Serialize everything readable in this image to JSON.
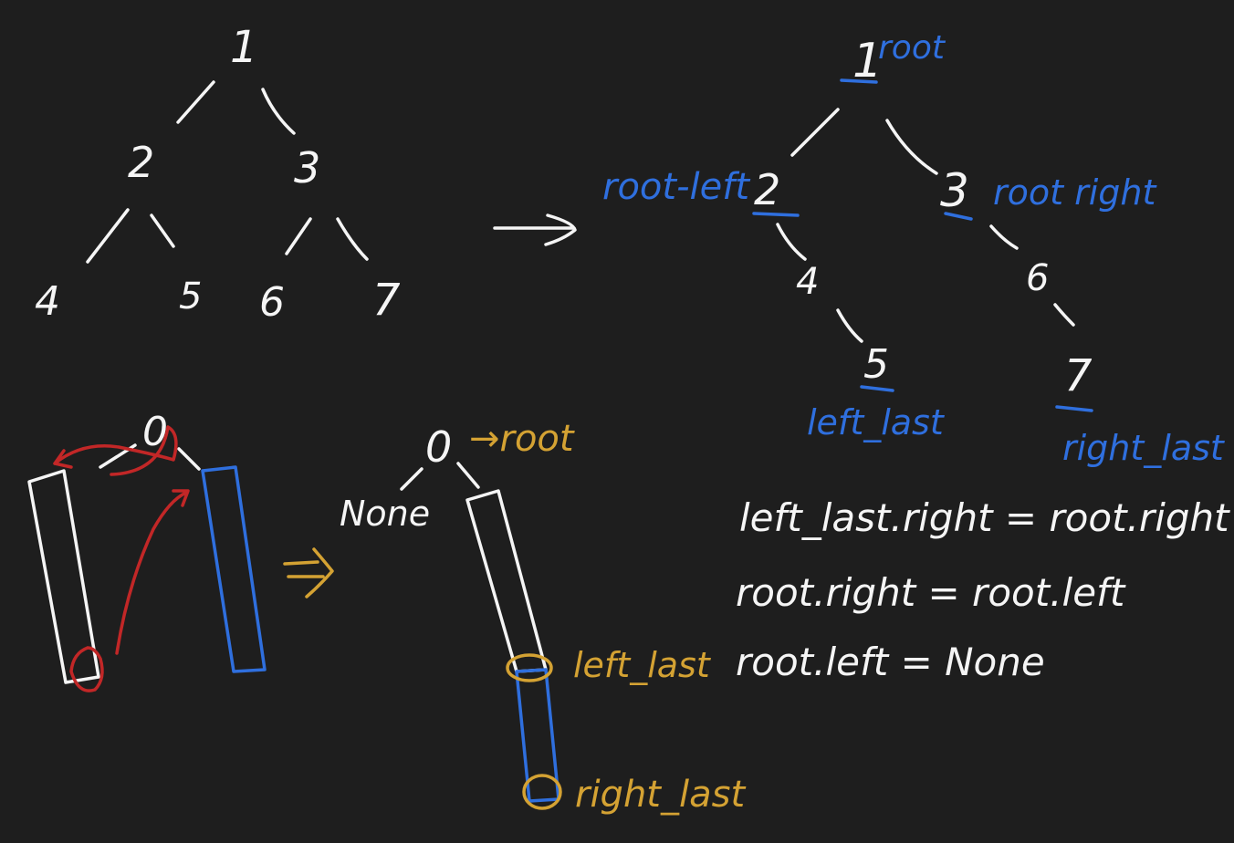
{
  "tree_original": {
    "nodes": [
      "1",
      "2",
      "3",
      "4",
      "5",
      "6",
      "7"
    ]
  },
  "tree_flattened": {
    "nodes": [
      "1",
      "2",
      "3",
      "4",
      "5",
      "6",
      "7"
    ],
    "labels": {
      "root": "root",
      "root_left": "root-left",
      "root_right": "root right",
      "left_last": "left_last",
      "right_last": "right_last"
    }
  },
  "bottom": {
    "node_zero_left": "0",
    "node_zero_right": "0",
    "none_label": "None",
    "root_label": "→root",
    "left_last_label": "left_last",
    "right_last_label": "right_last"
  },
  "code_lines": [
    "left_last.right = root.right",
    "root.right = root.left",
    "root.left = None"
  ],
  "colors": {
    "background": "#1e1e1e",
    "white": "#f5f5f5",
    "blue": "#2f6fde",
    "yellow": "#d4a233",
    "red": "#c22727"
  }
}
